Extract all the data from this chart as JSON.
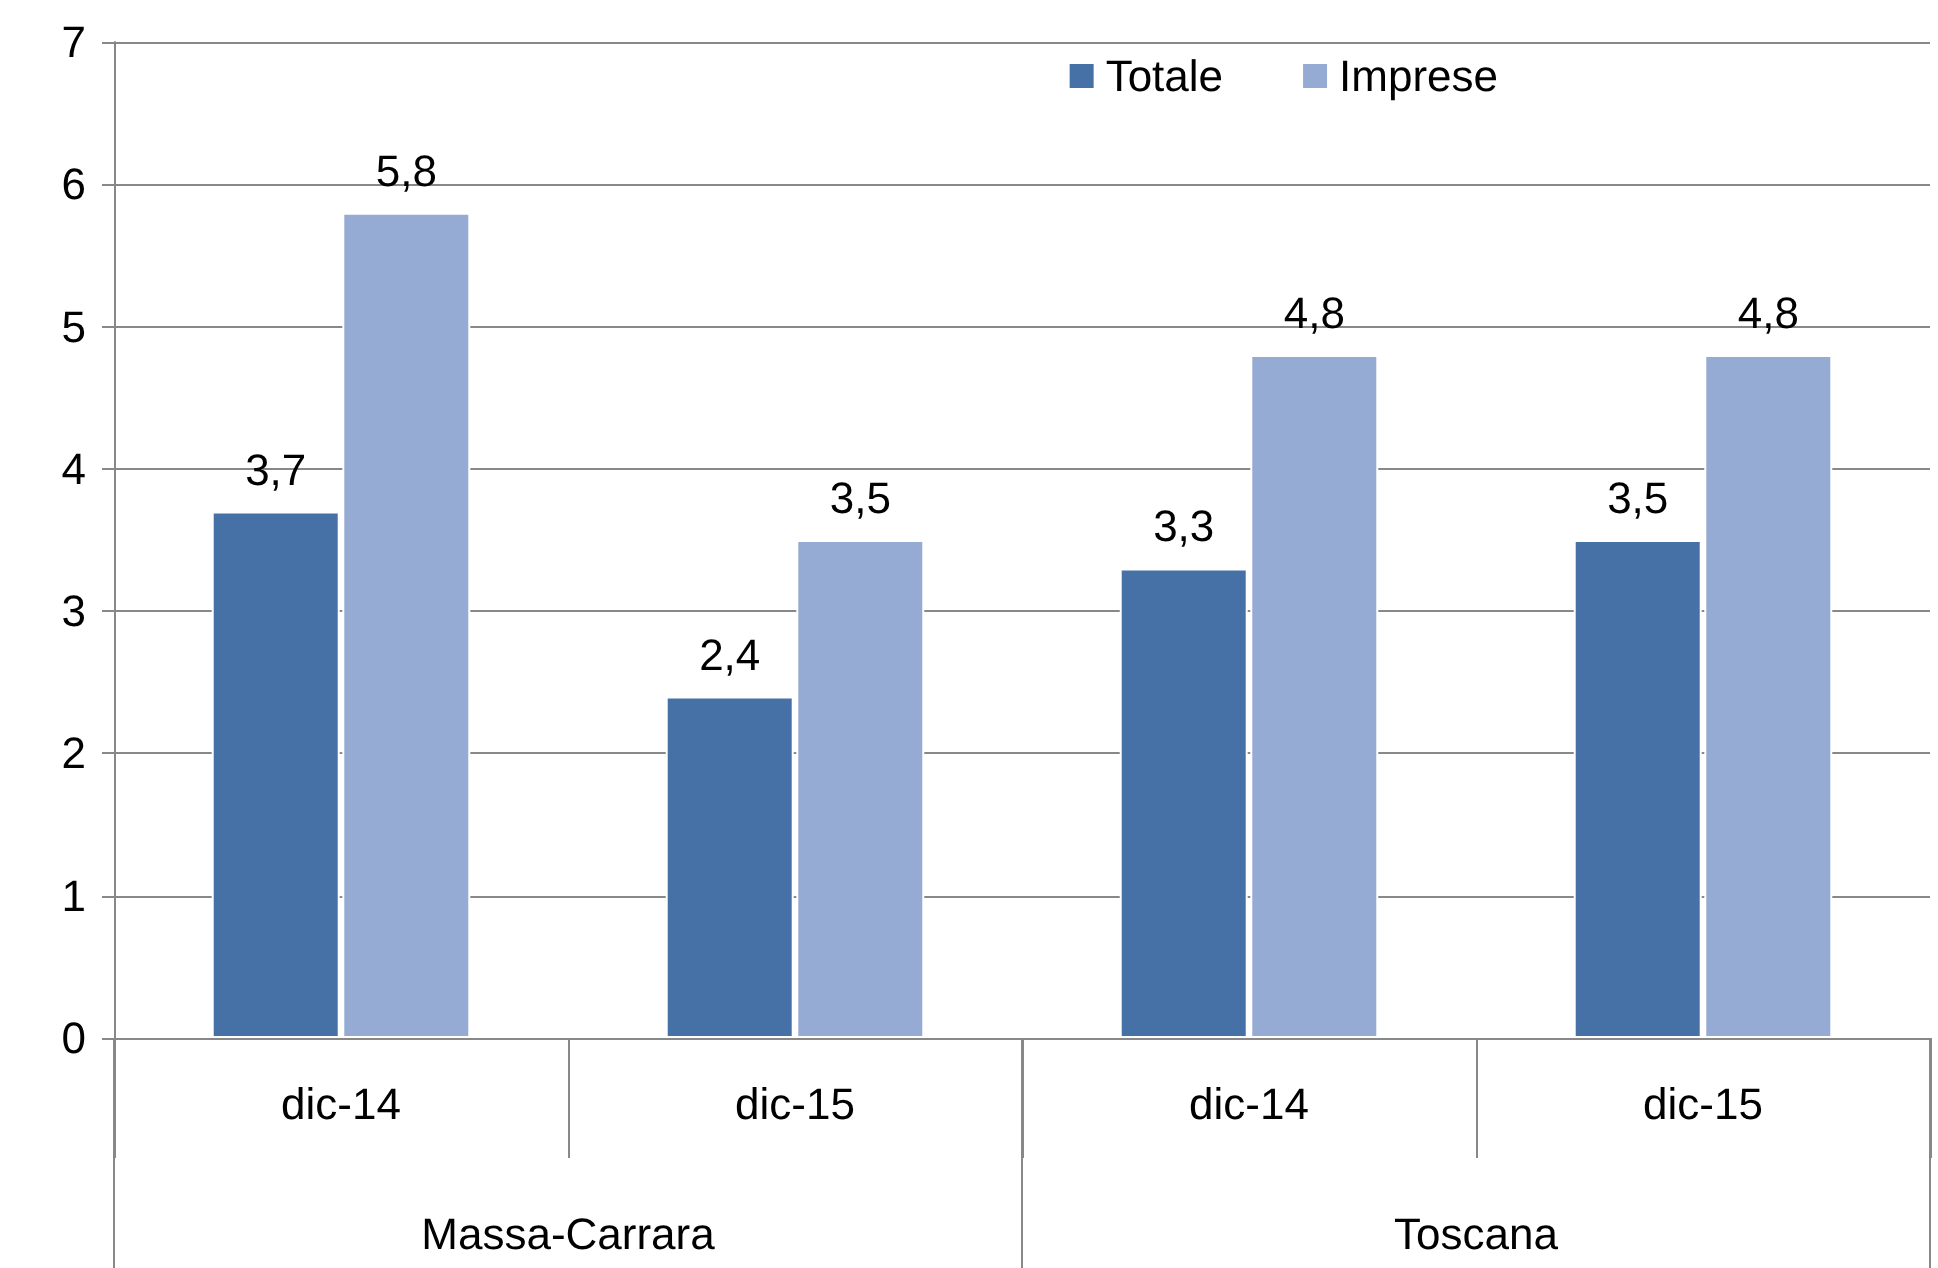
{
  "chart_data": {
    "type": "bar",
    "categories": [
      "dic-14",
      "dic-15",
      "dic-14",
      "dic-15"
    ],
    "series": [
      {
        "name": "Totale",
        "color": "#4571a6",
        "values": [
          3.7,
          2.4,
          3.3,
          3.5
        ],
        "value_labels": [
          "3,7",
          "2,4",
          "3,3",
          "3,5"
        ]
      },
      {
        "name": "Imprese",
        "color": "#95abd3",
        "values": [
          5.8,
          3.5,
          4.8,
          4.8
        ],
        "value_labels": [
          "5,8",
          "3,5",
          "4,8",
          "4,8"
        ]
      }
    ],
    "annotations": [
      "Massa-Carrara",
      "Toscana"
    ],
    "ylim": [
      0,
      7
    ],
    "yticks": [
      0,
      1,
      2,
      3,
      4,
      5,
      6,
      7
    ],
    "grid": "y",
    "legend": "top right"
  }
}
